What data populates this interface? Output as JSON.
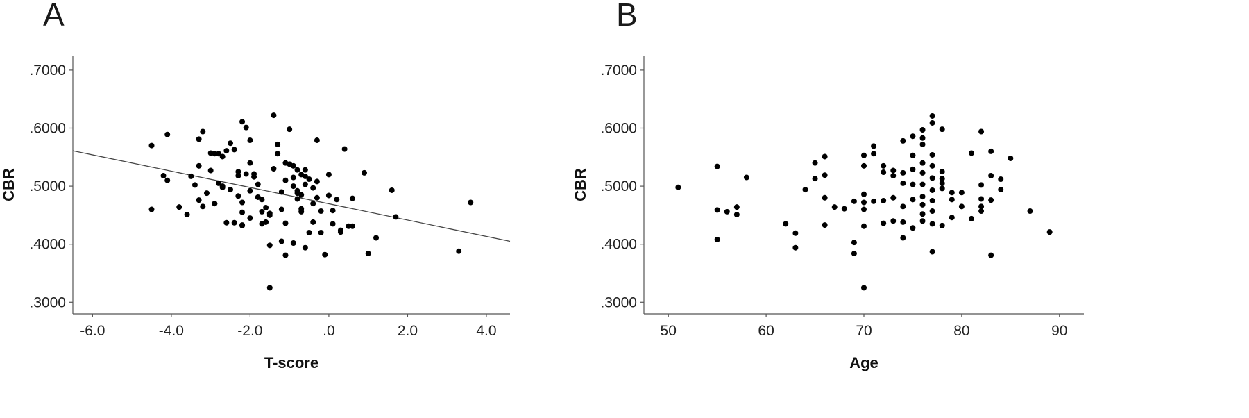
{
  "panels": [
    {
      "letter": "A",
      "chart_data": {
        "type": "scatter",
        "xlabel": "T-score",
        "ylabel": "CBR",
        "xlim": [
          -6.5,
          4.6
        ],
        "ylim": [
          0.28,
          0.725
        ],
        "xticks": [
          -6,
          -4,
          -2,
          0,
          2,
          4
        ],
        "xtick_labels": [
          "-6.0",
          "-4.0",
          "-2.0",
          ".0",
          "2.0",
          "4.0"
        ],
        "yticks": [
          0.3,
          0.4,
          0.5,
          0.6,
          0.7
        ],
        "ytick_labels": [
          ".3000",
          ".4000",
          ".5000",
          ".6000",
          ".7000"
        ],
        "grid": false,
        "fit_line": {
          "x": [
            -6.5,
            4.6
          ],
          "y": [
            0.561,
            0.405
          ]
        },
        "points": [
          [
            -4.5,
            0.57
          ],
          [
            -4.1,
            0.589
          ],
          [
            -4.2,
            0.518
          ],
          [
            -4.1,
            0.51
          ],
          [
            -3.8,
            0.464
          ],
          [
            -3.6,
            0.451
          ],
          [
            -3.5,
            0.517
          ],
          [
            -3.4,
            0.502
          ],
          [
            -3.3,
            0.581
          ],
          [
            -3.2,
            0.594
          ],
          [
            -3.3,
            0.535
          ],
          [
            -3.3,
            0.476
          ],
          [
            -3.2,
            0.465
          ],
          [
            -3.0,
            0.557
          ],
          [
            -2.9,
            0.556
          ],
          [
            -3.0,
            0.527
          ],
          [
            -2.9,
            0.47
          ],
          [
            -2.8,
            0.556
          ],
          [
            -2.7,
            0.551
          ],
          [
            -2.7,
            0.5
          ],
          [
            -2.6,
            0.561
          ],
          [
            -2.5,
            0.574
          ],
          [
            -2.4,
            0.563
          ],
          [
            -2.3,
            0.525
          ],
          [
            -2.2,
            0.472
          ],
          [
            -2.2,
            0.433
          ],
          [
            -2.2,
            0.611
          ],
          [
            -2.1,
            0.601
          ],
          [
            -2.0,
            0.579
          ],
          [
            -2.0,
            0.54
          ],
          [
            -1.9,
            0.521
          ],
          [
            -1.8,
            0.503
          ],
          [
            -1.7,
            0.477
          ],
          [
            -1.6,
            0.463
          ],
          [
            -1.5,
            0.45
          ],
          [
            -1.4,
            0.622
          ],
          [
            -1.3,
            0.556
          ],
          [
            -1.2,
            0.46
          ],
          [
            -1.1,
            0.436
          ],
          [
            -1.1,
            0.381
          ],
          [
            -1.0,
            0.598
          ],
          [
            -0.9,
            0.535
          ],
          [
            -0.9,
            0.515
          ],
          [
            -0.8,
            0.528
          ],
          [
            -0.8,
            0.492
          ],
          [
            -0.7,
            0.52
          ],
          [
            -0.7,
            0.485
          ],
          [
            -0.7,
            0.461
          ],
          [
            -0.7,
            0.456
          ],
          [
            -0.6,
            0.517
          ],
          [
            -0.6,
            0.503
          ],
          [
            -0.5,
            0.512
          ],
          [
            -0.4,
            0.497
          ],
          [
            -0.4,
            0.47
          ],
          [
            -0.4,
            0.438
          ],
          [
            -0.3,
            0.579
          ],
          [
            -0.3,
            0.508
          ],
          [
            -0.2,
            0.457
          ],
          [
            -0.2,
            0.42
          ],
          [
            -0.1,
            0.382
          ],
          [
            0.0,
            0.52
          ],
          [
            0.0,
            0.484
          ],
          [
            0.1,
            0.458
          ],
          [
            0.1,
            0.435
          ],
          [
            -1.5,
            0.325
          ],
          [
            -2.0,
            0.445
          ],
          [
            -1.7,
            0.435
          ],
          [
            -1.5,
            0.453
          ],
          [
            -1.2,
            0.405
          ],
          [
            -0.9,
            0.402
          ],
          [
            -0.6,
            0.394
          ],
          [
            -0.5,
            0.42
          ],
          [
            -2.6,
            0.437
          ],
          [
            -2.4,
            0.437
          ],
          [
            -2.2,
            0.455
          ],
          [
            -1.4,
            0.53
          ],
          [
            -1.3,
            0.572
          ],
          [
            -1.1,
            0.54
          ],
          [
            -1.0,
            0.538
          ],
          [
            -0.9,
            0.5
          ],
          [
            -0.8,
            0.478
          ],
          [
            -0.3,
            0.48
          ],
          [
            0.2,
            0.477
          ],
          [
            0.4,
            0.564
          ],
          [
            0.3,
            0.424
          ],
          [
            0.3,
            0.421
          ],
          [
            0.5,
            0.431
          ],
          [
            0.6,
            0.431
          ],
          [
            0.6,
            0.479
          ],
          [
            0.9,
            0.523
          ],
          [
            1.0,
            0.384
          ],
          [
            1.2,
            0.411
          ],
          [
            1.6,
            0.493
          ],
          [
            1.7,
            0.447
          ],
          [
            3.3,
            0.388
          ],
          [
            3.6,
            0.472
          ],
          [
            -4.5,
            0.46
          ],
          [
            -2.8,
            0.505
          ],
          [
            -2.2,
            0.432
          ],
          [
            -1.9,
            0.516
          ],
          [
            -1.6,
            0.438
          ],
          [
            -1.1,
            0.51
          ],
          [
            -2.5,
            0.494
          ],
          [
            -1.5,
            0.398
          ],
          [
            -2.3,
            0.483
          ],
          [
            -2.7,
            0.498
          ],
          [
            -1.8,
            0.481
          ],
          [
            -0.6,
            0.528
          ],
          [
            -1.2,
            0.49
          ],
          [
            -2.1,
            0.521
          ],
          [
            -3.1,
            0.488
          ],
          [
            -2.9,
            0.47
          ],
          [
            -1.7,
            0.456
          ],
          [
            -2.3,
            0.518
          ],
          [
            -2.0,
            0.492
          ],
          [
            -0.8,
            0.488
          ]
        ]
      }
    },
    {
      "letter": "B",
      "chart_data": {
        "type": "scatter",
        "xlabel": "Age",
        "ylabel": "CBR",
        "xlim": [
          47.5,
          92.5
        ],
        "ylim": [
          0.28,
          0.725
        ],
        "xticks": [
          50,
          60,
          70,
          80,
          90
        ],
        "xtick_labels": [
          "50",
          "60",
          "70",
          "80",
          "90"
        ],
        "yticks": [
          0.3,
          0.4,
          0.5,
          0.6,
          0.7
        ],
        "ytick_labels": [
          ".3000",
          ".4000",
          ".5000",
          ".6000",
          ".7000"
        ],
        "grid": false,
        "points": [
          [
            51,
            0.498
          ],
          [
            55,
            0.534
          ],
          [
            55,
            0.459
          ],
          [
            55,
            0.408
          ],
          [
            56,
            0.456
          ],
          [
            57,
            0.464
          ],
          [
            57,
            0.451
          ],
          [
            58,
            0.515
          ],
          [
            62,
            0.435
          ],
          [
            63,
            0.419
          ],
          [
            63,
            0.394
          ],
          [
            64,
            0.494
          ],
          [
            65,
            0.54
          ],
          [
            65,
            0.513
          ],
          [
            66,
            0.551
          ],
          [
            66,
            0.519
          ],
          [
            66,
            0.48
          ],
          [
            66,
            0.433
          ],
          [
            67,
            0.464
          ],
          [
            68,
            0.461
          ],
          [
            69,
            0.474
          ],
          [
            69,
            0.403
          ],
          [
            69,
            0.384
          ],
          [
            70,
            0.553
          ],
          [
            70,
            0.535
          ],
          [
            70,
            0.486
          ],
          [
            70,
            0.472
          ],
          [
            70,
            0.46
          ],
          [
            70,
            0.431
          ],
          [
            70,
            0.325
          ],
          [
            71,
            0.569
          ],
          [
            71,
            0.556
          ],
          [
            71,
            0.474
          ],
          [
            72,
            0.535
          ],
          [
            72,
            0.524
          ],
          [
            72,
            0.475
          ],
          [
            72,
            0.436
          ],
          [
            73,
            0.527
          ],
          [
            73,
            0.518
          ],
          [
            73,
            0.48
          ],
          [
            73,
            0.44
          ],
          [
            74,
            0.578
          ],
          [
            74,
            0.523
          ],
          [
            74,
            0.505
          ],
          [
            74,
            0.465
          ],
          [
            74,
            0.438
          ],
          [
            74,
            0.411
          ],
          [
            75,
            0.586
          ],
          [
            75,
            0.553
          ],
          [
            75,
            0.529
          ],
          [
            75,
            0.503
          ],
          [
            75,
            0.477
          ],
          [
            75,
            0.428
          ],
          [
            76,
            0.597
          ],
          [
            76,
            0.583
          ],
          [
            76,
            0.572
          ],
          [
            76,
            0.54
          ],
          [
            76,
            0.523
          ],
          [
            76,
            0.503
          ],
          [
            76,
            0.482
          ],
          [
            76,
            0.468
          ],
          [
            76,
            0.452
          ],
          [
            76,
            0.44
          ],
          [
            77,
            0.621
          ],
          [
            77,
            0.609
          ],
          [
            77,
            0.554
          ],
          [
            77,
            0.535
          ],
          [
            77,
            0.514
          ],
          [
            77,
            0.493
          ],
          [
            77,
            0.475
          ],
          [
            77,
            0.457
          ],
          [
            77,
            0.435
          ],
          [
            77,
            0.387
          ],
          [
            78,
            0.598
          ],
          [
            78,
            0.525
          ],
          [
            78,
            0.513
          ],
          [
            78,
            0.505
          ],
          [
            78,
            0.496
          ],
          [
            78,
            0.432
          ],
          [
            79,
            0.489
          ],
          [
            79,
            0.477
          ],
          [
            79,
            0.446
          ],
          [
            80,
            0.489
          ],
          [
            80,
            0.465
          ],
          [
            81,
            0.557
          ],
          [
            81,
            0.444
          ],
          [
            82,
            0.594
          ],
          [
            82,
            0.502
          ],
          [
            82,
            0.478
          ],
          [
            82,
            0.465
          ],
          [
            82,
            0.457
          ],
          [
            83,
            0.56
          ],
          [
            83,
            0.518
          ],
          [
            83,
            0.476
          ],
          [
            83,
            0.381
          ],
          [
            84,
            0.512
          ],
          [
            84,
            0.494
          ],
          [
            85,
            0.548
          ],
          [
            87,
            0.457
          ],
          [
            89,
            0.421
          ]
        ]
      }
    }
  ]
}
